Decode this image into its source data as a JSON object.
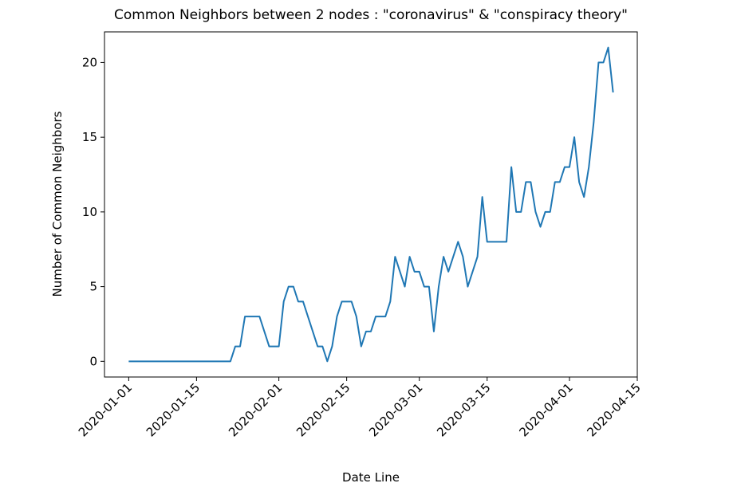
{
  "chart_data": {
    "type": "line",
    "title": "Common Neighbors between 2 nodes : \"coronavirus\" & \"conspiracy theory\"",
    "xlabel": "Date Line",
    "ylabel": "Number of Common Neighbors",
    "x": [
      "2020-01-01",
      "2020-01-02",
      "2020-01-03",
      "2020-01-04",
      "2020-01-05",
      "2020-01-06",
      "2020-01-07",
      "2020-01-08",
      "2020-01-09",
      "2020-01-10",
      "2020-01-11",
      "2020-01-12",
      "2020-01-13",
      "2020-01-14",
      "2020-01-15",
      "2020-01-16",
      "2020-01-17",
      "2020-01-18",
      "2020-01-19",
      "2020-01-20",
      "2020-01-21",
      "2020-01-22",
      "2020-01-23",
      "2020-01-24",
      "2020-01-25",
      "2020-01-26",
      "2020-01-27",
      "2020-01-28",
      "2020-01-29",
      "2020-01-30",
      "2020-01-31",
      "2020-02-01",
      "2020-02-02",
      "2020-02-03",
      "2020-02-04",
      "2020-02-05",
      "2020-02-06",
      "2020-02-07",
      "2020-02-08",
      "2020-02-09",
      "2020-02-10",
      "2020-02-11",
      "2020-02-12",
      "2020-02-13",
      "2020-02-14",
      "2020-02-15",
      "2020-02-16",
      "2020-02-17",
      "2020-02-18",
      "2020-02-19",
      "2020-02-20",
      "2020-02-21",
      "2020-02-22",
      "2020-02-23",
      "2020-02-24",
      "2020-02-25",
      "2020-02-26",
      "2020-02-27",
      "2020-02-28",
      "2020-02-29",
      "2020-03-01",
      "2020-03-02",
      "2020-03-03",
      "2020-03-04",
      "2020-03-05",
      "2020-03-06",
      "2020-03-07",
      "2020-03-08",
      "2020-03-09",
      "2020-03-10",
      "2020-03-11",
      "2020-03-12",
      "2020-03-13",
      "2020-03-14",
      "2020-03-15",
      "2020-03-16",
      "2020-03-17",
      "2020-03-18",
      "2020-03-19",
      "2020-03-20",
      "2020-03-21",
      "2020-03-22",
      "2020-03-23",
      "2020-03-24",
      "2020-03-25",
      "2020-03-26",
      "2020-03-27",
      "2020-03-28",
      "2020-03-29",
      "2020-03-30",
      "2020-03-31",
      "2020-04-01",
      "2020-04-02",
      "2020-04-03",
      "2020-04-04",
      "2020-04-05",
      "2020-04-06",
      "2020-04-07",
      "2020-04-08",
      "2020-04-09",
      "2020-04-10"
    ],
    "values": [
      0,
      0,
      0,
      0,
      0,
      0,
      0,
      0,
      0,
      0,
      0,
      0,
      0,
      0,
      0,
      0,
      0,
      0,
      0,
      0,
      0,
      0,
      1,
      1,
      3,
      3,
      3,
      3,
      2,
      1,
      1,
      1,
      4,
      5,
      5,
      4,
      4,
      3,
      2,
      1,
      1,
      0,
      1,
      3,
      4,
      4,
      4,
      3,
      1,
      2,
      2,
      3,
      3,
      3,
      4,
      7,
      6,
      5,
      7,
      6,
      6,
      5,
      5,
      2,
      5,
      7,
      6,
      7,
      8,
      7,
      5,
      6,
      7,
      11,
      8,
      8,
      8,
      8,
      8,
      13,
      10,
      10,
      12,
      12,
      10,
      9,
      10,
      10,
      12,
      12,
      13,
      13,
      15,
      12,
      11,
      13,
      16,
      20,
      20,
      21,
      18
    ],
    "color": "#1f77b4",
    "xlim": [
      "2019-12-27",
      "2020-04-15"
    ],
    "xticks": [
      "2020-01-01",
      "2020-01-15",
      "2020-02-01",
      "2020-02-15",
      "2020-03-01",
      "2020-03-15",
      "2020-04-01",
      "2020-04-15"
    ],
    "ylim": [
      -1.05,
      22.05
    ],
    "yticks": [
      0,
      5,
      10,
      15,
      20
    ],
    "grid": false
  }
}
